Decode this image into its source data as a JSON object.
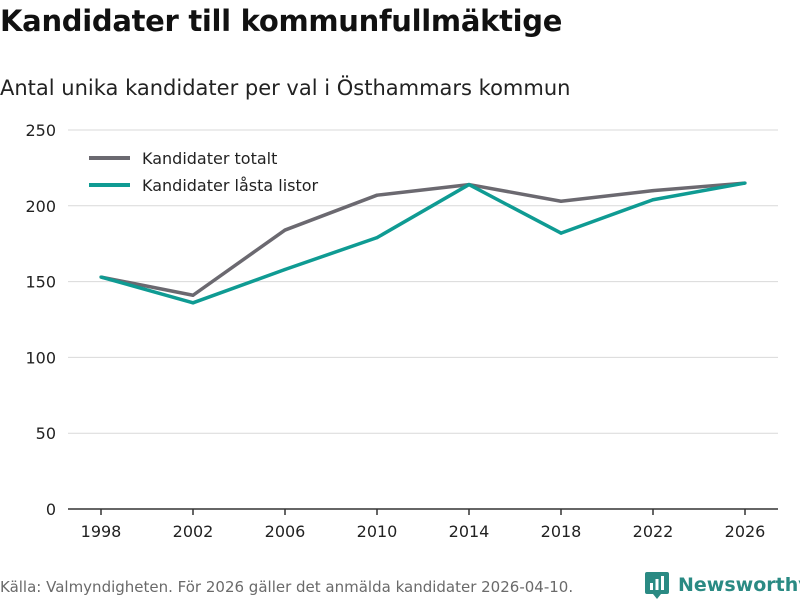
{
  "header": {
    "title": "Kandidater till kommunfullmäktige",
    "subtitle": "Antal unika kandidater per val i Östhammars kommun"
  },
  "footer": {
    "source": "Källa: Valmyndigheten. För 2026 gäller det anmälda kandidater 2026-04-10.",
    "brand": "Newsworthy",
    "brand_icon": "newsworthy-logo-icon"
  },
  "colors": {
    "series_total": "#6b6970",
    "series_locked": "#0f9b93",
    "grid": "#d9d9d9",
    "axis": "#333333",
    "brand": "#2a8a83"
  },
  "chart_data": {
    "type": "line",
    "title": "Kandidater till kommunfullmäktige",
    "subtitle": "Antal unika kandidater per val i Östhammars kommun",
    "xlabel": "",
    "ylabel": "",
    "categories": [
      "1998",
      "2002",
      "2006",
      "2010",
      "2014",
      "2018",
      "2022",
      "2026"
    ],
    "ylim": [
      0,
      250
    ],
    "yticks": [
      0,
      50,
      100,
      150,
      200,
      250
    ],
    "grid": true,
    "legend_position": "top-left",
    "series": [
      {
        "name": "Kandidater totalt",
        "color": "#6b6970",
        "values": [
          153,
          141,
          184,
          207,
          214,
          203,
          210,
          215
        ]
      },
      {
        "name": "Kandidater låsta listor",
        "color": "#0f9b93",
        "values": [
          153,
          136,
          158,
          179,
          214,
          182,
          204,
          215
        ]
      }
    ]
  }
}
